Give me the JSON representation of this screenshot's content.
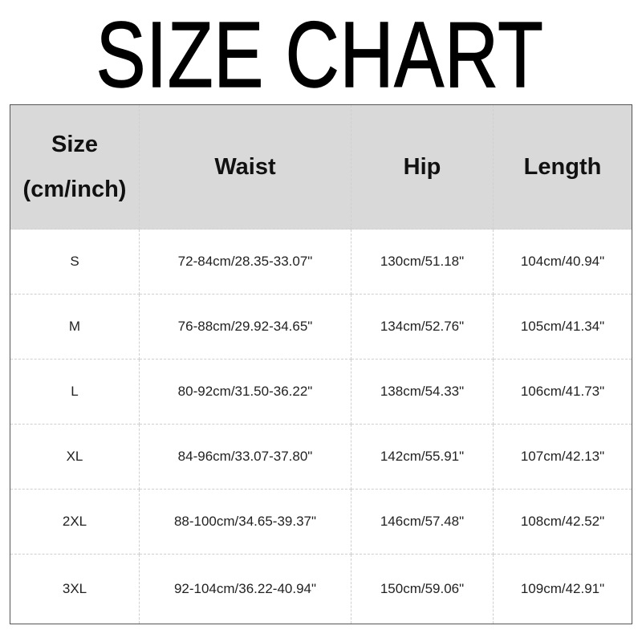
{
  "title": "SIZE CHART",
  "headers": {
    "size_line1": "Size",
    "size_line2": "(cm/inch)",
    "waist": "Waist",
    "hip": "Hip",
    "length": "Length"
  },
  "rows": [
    {
      "size": "S",
      "waist": "72-84cm/28.35-33.07\"",
      "hip": "130cm/51.18\"",
      "length": "104cm/40.94\""
    },
    {
      "size": "M",
      "waist": "76-88cm/29.92-34.65\"",
      "hip": "134cm/52.76\"",
      "length": "105cm/41.34\""
    },
    {
      "size": "L",
      "waist": "80-92cm/31.50-36.22\"",
      "hip": "138cm/54.33\"",
      "length": "106cm/41.73\""
    },
    {
      "size": "XL",
      "waist": "84-96cm/33.07-37.80\"",
      "hip": "142cm/55.91\"",
      "length": "107cm/42.13\""
    },
    {
      "size": "2XL",
      "waist": "88-100cm/34.65-39.37\"",
      "hip": "146cm/57.48\"",
      "length": "108cm/42.52\""
    },
    {
      "size": "3XL",
      "waist": "92-104cm/36.22-40.94\"",
      "hip": "150cm/59.06\"",
      "length": "109cm/42.91\""
    }
  ],
  "colors": {
    "header_bg": "#d9d9d9",
    "border": "#555555",
    "grid": "#cfcfcf"
  }
}
